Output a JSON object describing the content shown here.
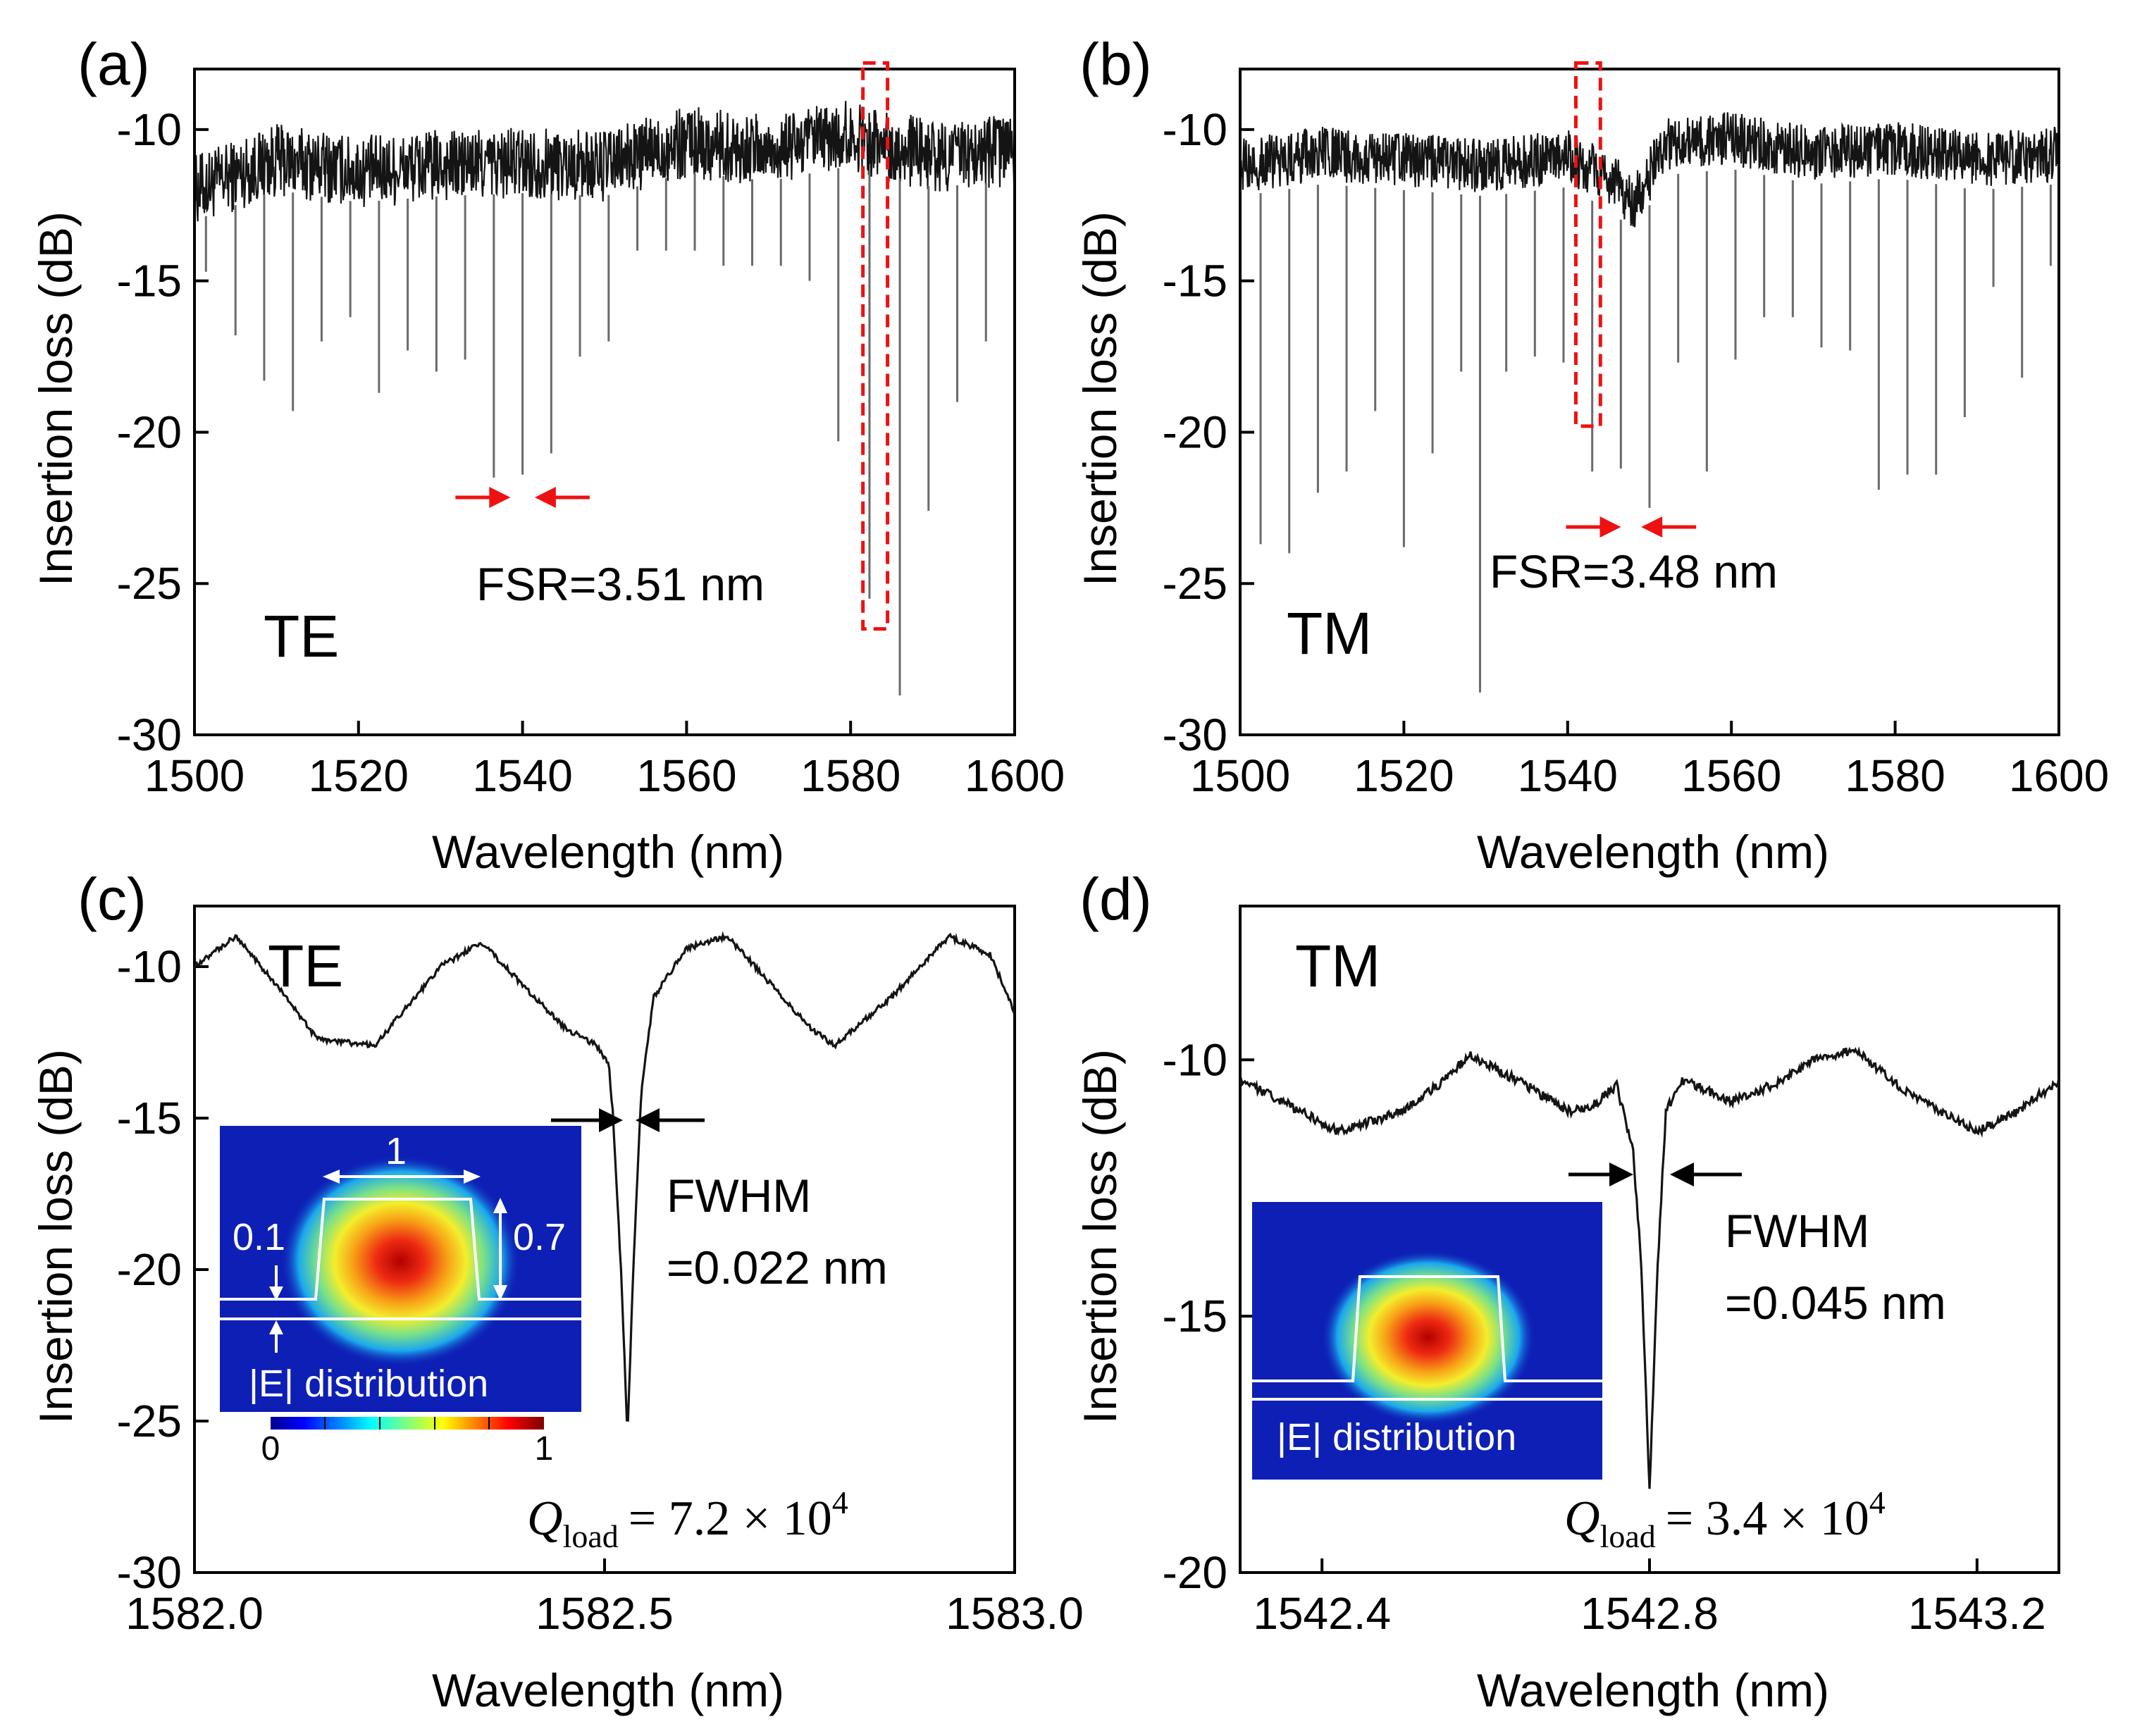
{
  "chart_data": [
    {
      "type": "line",
      "panel_label": "(a)",
      "mode": "TE",
      "xlabel": "Wavelength (nm)",
      "ylabel": "Insertion loss (dB)",
      "xlim": [
        1500,
        1600
      ],
      "ylim": [
        -30,
        -8
      ],
      "xticks": [
        1500,
        1520,
        1540,
        1560,
        1580,
        1600
      ],
      "xtick_labels": [
        "1500",
        "1520",
        "1540",
        "1560",
        "1580",
        "1600"
      ],
      "yticks": [
        -30,
        -25,
        -20,
        -15,
        -10
      ],
      "ytick_labels": [
        "-30",
        "-25",
        "-20",
        "-15",
        "-10"
      ],
      "baseline": [
        [
          1500,
          -12.0
        ],
        [
          1510,
          -11.0
        ],
        [
          1520,
          -11.4
        ],
        [
          1530,
          -11.2
        ],
        [
          1540,
          -11.1
        ],
        [
          1550,
          -11.2
        ],
        [
          1560,
          -10.4
        ],
        [
          1570,
          -10.7
        ],
        [
          1580,
          -10.2
        ],
        [
          1590,
          -10.9
        ],
        [
          1600,
          -10.7
        ]
      ],
      "noise_db": 1.2,
      "resonance_dips": [
        [
          1501.4,
          -14.7
        ],
        [
          1505.0,
          -16.8
        ],
        [
          1508.5,
          -18.3
        ],
        [
          1512.0,
          -19.3
        ],
        [
          1515.5,
          -17.0
        ],
        [
          1519.0,
          -16.2
        ],
        [
          1522.5,
          -18.7
        ],
        [
          1526.0,
          -17.3
        ],
        [
          1529.5,
          -18.0
        ],
        [
          1533.0,
          -17.6
        ],
        [
          1536.5,
          -21.5
        ],
        [
          1540.0,
          -21.4
        ],
        [
          1543.5,
          -20.7
        ],
        [
          1547.0,
          -17.5
        ],
        [
          1550.5,
          -17.0
        ],
        [
          1554.0,
          -14.0
        ],
        [
          1557.5,
          -14.0
        ],
        [
          1561.0,
          -14.0
        ],
        [
          1564.5,
          -14.5
        ],
        [
          1568.0,
          -14.5
        ],
        [
          1571.5,
          -14.5
        ],
        [
          1575.0,
          -15.0
        ],
        [
          1578.5,
          -20.3
        ],
        [
          1582.3,
          -25.5
        ],
        [
          1586.0,
          -28.7
        ],
        [
          1589.5,
          -22.6
        ],
        [
          1593.0,
          -19.0
        ],
        [
          1596.5,
          -17.0
        ]
      ],
      "annotations": [
        "FSR=3.51 nm",
        "TE"
      ],
      "fsr_arrows_at_wavelength": [
        1538.0,
        1542.0
      ],
      "highlight_box_wavelength_range": [
        1581.5,
        1584.5
      ],
      "highlight_box_db_range": [
        -26.5,
        -7.8
      ]
    },
    {
      "type": "line",
      "panel_label": "(b)",
      "mode": "TM",
      "xlabel": "Wavelength (nm)",
      "ylabel": "Insertion loss (dB)",
      "xlim": [
        1500,
        1600
      ],
      "ylim": [
        -30,
        -8
      ],
      "xticks": [
        1500,
        1520,
        1540,
        1560,
        1580,
        1600
      ],
      "xtick_labels": [
        "1500",
        "1520",
        "1540",
        "1560",
        "1580",
        "1600"
      ],
      "yticks": [
        -30,
        -25,
        -20,
        -15,
        -10
      ],
      "ytick_labels": [
        "-30",
        "-25",
        "-20",
        "-15",
        "-10"
      ],
      "baseline": [
        [
          1500,
          -11.2
        ],
        [
          1510,
          -10.8
        ],
        [
          1520,
          -11.0
        ],
        [
          1530,
          -11.2
        ],
        [
          1540,
          -10.9
        ],
        [
          1546,
          -11.8
        ],
        [
          1548,
          -12.5
        ],
        [
          1552,
          -10.5
        ],
        [
          1560,
          -10.3
        ],
        [
          1570,
          -10.8
        ],
        [
          1580,
          -10.6
        ],
        [
          1590,
          -11.0
        ],
        [
          1600,
          -10.8
        ]
      ],
      "noise_db": 0.9,
      "resonance_dips": [
        [
          1502.5,
          -23.7
        ],
        [
          1506.0,
          -24.0
        ],
        [
          1509.5,
          -22.0
        ],
        [
          1513.0,
          -21.3
        ],
        [
          1516.5,
          -19.3
        ],
        [
          1520.0,
          -23.8
        ],
        [
          1523.5,
          -20.7
        ],
        [
          1527.0,
          -18.0
        ],
        [
          1529.3,
          -28.6
        ],
        [
          1532.5,
          -18.0
        ],
        [
          1536.0,
          -17.5
        ],
        [
          1539.5,
          -17.7
        ],
        [
          1543.0,
          -21.3
        ],
        [
          1546.5,
          -21.2
        ],
        [
          1550.0,
          -22.5
        ],
        [
          1553.5,
          -17.7
        ],
        [
          1557.0,
          -21.3
        ],
        [
          1560.5,
          -17.6
        ],
        [
          1564.0,
          -16.2
        ],
        [
          1567.5,
          -16.2
        ],
        [
          1571.0,
          -17.2
        ],
        [
          1574.5,
          -17.3
        ],
        [
          1578.0,
          -21.9
        ],
        [
          1581.5,
          -21.4
        ],
        [
          1585.0,
          -21.4
        ],
        [
          1588.5,
          -19.5
        ],
        [
          1592.0,
          -15.2
        ],
        [
          1595.5,
          -18.2
        ],
        [
          1599.0,
          -14.5
        ]
      ],
      "annotations": [
        "FSR=3.48 nm",
        "TM"
      ],
      "fsr_arrows_at_wavelength": [
        1546.0,
        1549.5
      ],
      "highlight_box_wavelength_range": [
        1541.0,
        1544.0
      ],
      "highlight_box_db_range": [
        -19.8,
        -7.8
      ]
    },
    {
      "type": "line",
      "panel_label": "(c)",
      "mode": "TE",
      "xlabel": "Wavelength (nm)",
      "ylabel": "Insertion loss (dB)",
      "xlim": [
        1582.0,
        1583.0
      ],
      "ylim": [
        -30,
        -8
      ],
      "xticks": [
        1582.0,
        1582.5,
        1583.0
      ],
      "xtick_labels": [
        "1582.0",
        "1582.5",
        "1583.0"
      ],
      "yticks": [
        -30,
        -25,
        -20,
        -15,
        -10
      ],
      "ytick_labels": [
        "-30",
        "-25",
        "-20",
        "-15",
        "-10"
      ],
      "series_points": [
        [
          1582.0,
          -10.0
        ],
        [
          1582.05,
          -9.0
        ],
        [
          1582.1,
          -10.6
        ],
        [
          1582.15,
          -12.4
        ],
        [
          1582.22,
          -12.6
        ],
        [
          1582.3,
          -10.0
        ],
        [
          1582.35,
          -9.2
        ],
        [
          1582.45,
          -12.0
        ],
        [
          1582.49,
          -12.6
        ],
        [
          1582.505,
          -13.2
        ],
        [
          1582.51,
          -14.8
        ],
        [
          1582.52,
          -20.0
        ],
        [
          1582.528,
          -25.5
        ],
        [
          1582.535,
          -20.0
        ],
        [
          1582.545,
          -14.0
        ],
        [
          1582.56,
          -11.0
        ],
        [
          1582.6,
          -9.4
        ],
        [
          1582.65,
          -9.0
        ],
        [
          1582.75,
          -12.0
        ],
        [
          1582.78,
          -12.6
        ],
        [
          1582.85,
          -11.0
        ],
        [
          1582.92,
          -9.0
        ],
        [
          1582.97,
          -9.6
        ],
        [
          1583.0,
          -11.5
        ]
      ],
      "annotations": [
        "FWHM",
        "=0.022 nm",
        "TE"
      ],
      "q_label": "Q",
      "q_subscript": "load",
      "q_value_text": "= 7.2 × 10",
      "q_exponent": "4",
      "inset_dimension_labels": [
        "1",
        "0.1",
        "0.7"
      ],
      "inset_caption": "|E| distribution",
      "colorbar_labels": [
        "0",
        "1"
      ]
    },
    {
      "type": "line",
      "panel_label": "(d)",
      "mode": "TM",
      "xlabel": "Wavelength (nm)",
      "ylabel": "Insertion loss (dB)",
      "xlim": [
        1542.3,
        1543.3
      ],
      "ylim": [
        -20,
        -7
      ],
      "xticks": [
        1542.4,
        1542.8,
        1543.2
      ],
      "xtick_labels": [
        "1542.4",
        "1542.8",
        "1543.2"
      ],
      "yticks": [
        -20,
        -15,
        -10
      ],
      "ytick_labels": [
        "-20",
        "-15",
        "-10"
      ],
      "series_points": [
        [
          1542.3,
          -10.4
        ],
        [
          1542.35,
          -10.8
        ],
        [
          1542.42,
          -11.4
        ],
        [
          1542.5,
          -11.0
        ],
        [
          1542.55,
          -10.4
        ],
        [
          1542.58,
          -9.9
        ],
        [
          1542.65,
          -10.5
        ],
        [
          1542.7,
          -11.0
        ],
        [
          1542.73,
          -10.9
        ],
        [
          1542.76,
          -10.5
        ],
        [
          1542.78,
          -11.8
        ],
        [
          1542.79,
          -14.0
        ],
        [
          1542.8,
          -18.4
        ],
        [
          1542.81,
          -14.0
        ],
        [
          1542.82,
          -11.0
        ],
        [
          1542.84,
          -10.4
        ],
        [
          1542.9,
          -10.8
        ],
        [
          1542.95,
          -10.5
        ],
        [
          1543.0,
          -10.0
        ],
        [
          1543.05,
          -9.8
        ],
        [
          1543.12,
          -10.7
        ],
        [
          1543.2,
          -11.4
        ],
        [
          1543.25,
          -11.0
        ],
        [
          1543.3,
          -10.4
        ]
      ],
      "annotations": [
        "FWHM",
        "=0.045 nm",
        "TM"
      ],
      "q_label": "Q",
      "q_subscript": "load",
      "q_value_text": "= 3.4 × 10",
      "q_exponent": "4",
      "inset_caption": "|E| distribution"
    }
  ],
  "colors": {
    "trace": "#141414",
    "highlight_box": "#ee1111",
    "fsr_arrow": "#ee1111",
    "fwhm_arrow": "#000000",
    "inset_background": "#0e1fb5"
  }
}
